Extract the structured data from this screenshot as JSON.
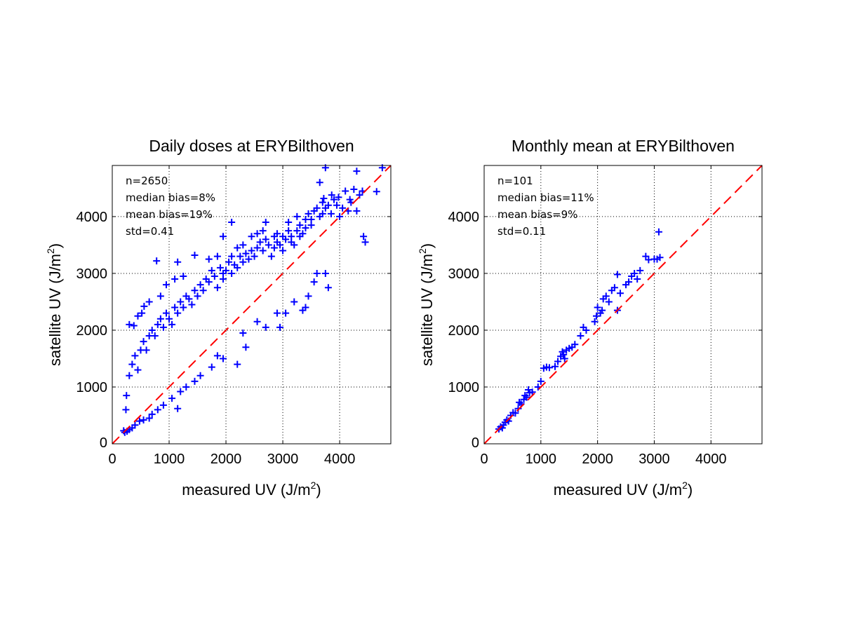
{
  "chart_data": [
    {
      "type": "scatter",
      "title": "Daily doses at ERYBilthoven",
      "xlabel": "measured UV (J/m",
      "ylabel": "satellite UV (J/m",
      "label_superscript": "2",
      "label_close": ")",
      "xlim": [
        0,
        4900
      ],
      "ylim": [
        0,
        4900
      ],
      "xticks": [
        "0",
        "1000",
        "2000",
        "3000",
        "4000"
      ],
      "yticks": [
        "0",
        "1000",
        "2000",
        "3000",
        "4000"
      ],
      "tick_values": [
        0,
        1000,
        2000,
        3000,
        4000
      ],
      "grid": true,
      "reference_line": [
        [
          0,
          0
        ],
        [
          4900,
          4900
        ]
      ],
      "annotations": [
        "n=2650",
        "median bias=8%",
        "mean bias=19%",
        "std=0.41"
      ],
      "marker": "+",
      "marker_color": "#0000ff",
      "line_color": "#ff0000",
      "points": [
        [
          4750,
          4860
        ],
        [
          4650,
          4440
        ],
        [
          4400,
          4450
        ],
        [
          4350,
          4380
        ],
        [
          4250,
          4480
        ],
        [
          4180,
          4300
        ],
        [
          4100,
          4450
        ],
        [
          4420,
          3650
        ],
        [
          4450,
          3550
        ],
        [
          4300,
          4100
        ],
        [
          3980,
          4340
        ],
        [
          3860,
          4380
        ],
        [
          3750,
          4860
        ],
        [
          3720,
          4320
        ],
        [
          3700,
          4050
        ],
        [
          3650,
          4600
        ],
        [
          4300,
          4800
        ],
        [
          3500,
          3950
        ],
        [
          3400,
          3800
        ],
        [
          3300,
          3650
        ],
        [
          3250,
          4000
        ],
        [
          3100,
          3900
        ],
        [
          3000,
          3650
        ],
        [
          2900,
          3550
        ],
        [
          2700,
          3900
        ],
        [
          2650,
          3750
        ],
        [
          2550,
          3700
        ],
        [
          2450,
          3650
        ],
        [
          2300,
          3500
        ],
        [
          2200,
          3450
        ],
        [
          2100,
          3300
        ],
        [
          1950,
          3000
        ],
        [
          1850,
          3300
        ],
        [
          1700,
          3250
        ],
        [
          1450,
          3320
        ],
        [
          1250,
          2950
        ],
        [
          1150,
          3200
        ],
        [
          1100,
          2900
        ],
        [
          950,
          2800
        ],
        [
          780,
          3220
        ],
        [
          850,
          2600
        ],
        [
          650,
          2500
        ],
        [
          560,
          2420
        ],
        [
          520,
          2300
        ],
        [
          450,
          2250
        ],
        [
          380,
          2080
        ],
        [
          300,
          2100
        ],
        [
          2100,
          3900
        ],
        [
          1950,
          3650
        ],
        [
          2850,
          3650
        ],
        [
          3150,
          3550
        ],
        [
          3400,
          2400
        ],
        [
          3350,
          2350
        ],
        [
          3800,
          2750
        ],
        [
          3750,
          3000
        ],
        [
          3600,
          3000
        ],
        [
          3550,
          2850
        ],
        [
          3450,
          2600
        ],
        [
          3200,
          2500
        ],
        [
          3050,
          2300
        ],
        [
          2900,
          2300
        ],
        [
          2950,
          2050
        ],
        [
          2700,
          2050
        ],
        [
          2550,
          2150
        ],
        [
          2350,
          1700
        ],
        [
          2300,
          1950
        ],
        [
          2200,
          1400
        ],
        [
          1950,
          1500
        ],
        [
          1850,
          1550
        ],
        [
          1750,
          1350
        ],
        [
          1550,
          1200
        ],
        [
          1450,
          1100
        ],
        [
          1300,
          1000
        ],
        [
          1200,
          920
        ],
        [
          1150,
          620
        ],
        [
          1050,
          800
        ],
        [
          900,
          680
        ],
        [
          800,
          600
        ],
        [
          700,
          520
        ],
        [
          650,
          450
        ],
        [
          550,
          420
        ],
        [
          480,
          400
        ],
        [
          400,
          330
        ],
        [
          350,
          280
        ],
        [
          300,
          250
        ],
        [
          260,
          220
        ],
        [
          220,
          200
        ],
        [
          200,
          230
        ],
        [
          240,
          600
        ],
        [
          250,
          850
        ],
        [
          300,
          1200
        ],
        [
          350,
          1400
        ],
        [
          400,
          1550
        ],
        [
          450,
          1300
        ],
        [
          500,
          1650
        ],
        [
          550,
          1800
        ],
        [
          600,
          1650
        ],
        [
          650,
          1900
        ],
        [
          700,
          2000
        ],
        [
          750,
          1900
        ],
        [
          800,
          2100
        ],
        [
          850,
          2200
        ],
        [
          900,
          2050
        ],
        [
          950,
          2300
        ],
        [
          1000,
          2200
        ],
        [
          1050,
          2100
        ],
        [
          1100,
          2400
        ],
        [
          1150,
          2300
        ],
        [
          1200,
          2500
        ],
        [
          1250,
          2400
        ],
        [
          1300,
          2600
        ],
        [
          1350,
          2550
        ],
        [
          1400,
          2450
        ],
        [
          1450,
          2700
        ],
        [
          1500,
          2600
        ],
        [
          1550,
          2800
        ],
        [
          1600,
          2700
        ],
        [
          1650,
          2900
        ],
        [
          1700,
          2850
        ],
        [
          1750,
          3050
        ],
        [
          1800,
          2950
        ],
        [
          1850,
          2750
        ],
        [
          1900,
          3100
        ],
        [
          1950,
          2900
        ],
        [
          2000,
          3050
        ],
        [
          2050,
          3200
        ],
        [
          2100,
          3000
        ],
        [
          2150,
          3150
        ],
        [
          2200,
          3100
        ],
        [
          2250,
          3300
        ],
        [
          2300,
          3200
        ],
        [
          2350,
          3350
        ],
        [
          2400,
          3250
        ],
        [
          2450,
          3400
        ],
        [
          2500,
          3300
        ],
        [
          2550,
          3450
        ],
        [
          2600,
          3550
        ],
        [
          2650,
          3400
        ],
        [
          2700,
          3600
        ],
        [
          2750,
          3500
        ],
        [
          2800,
          3300
        ],
        [
          2850,
          3450
        ],
        [
          2900,
          3700
        ],
        [
          2950,
          3500
        ],
        [
          3000,
          3400
        ],
        [
          3050,
          3600
        ],
        [
          3100,
          3750
        ],
        [
          3150,
          3650
        ],
        [
          3200,
          3500
        ],
        [
          3250,
          3750
        ],
        [
          3300,
          3850
        ],
        [
          3350,
          3700
        ],
        [
          3400,
          3950
        ],
        [
          3450,
          4050
        ],
        [
          3500,
          3850
        ],
        [
          3550,
          4100
        ],
        [
          3600,
          4150
        ],
        [
          3650,
          4000
        ],
        [
          3700,
          4250
        ],
        [
          3750,
          4150
        ],
        [
          3800,
          4200
        ],
        [
          3850,
          4050
        ],
        [
          3900,
          4300
        ],
        [
          3950,
          4200
        ],
        [
          4000,
          4000
        ],
        [
          4050,
          4150
        ],
        [
          4150,
          4100
        ],
        [
          4200,
          4250
        ]
      ]
    },
    {
      "type": "scatter",
      "title": "Monthly mean at ERYBilthoven",
      "xlabel": "measured UV (J/m",
      "ylabel": "satellite UV (J/m",
      "label_superscript": "2",
      "label_close": ")",
      "xlim": [
        0,
        4900
      ],
      "ylim": [
        0,
        4900
      ],
      "xticks": [
        "0",
        "1000",
        "2000",
        "3000",
        "4000"
      ],
      "yticks": [
        "0",
        "1000",
        "2000",
        "3000",
        "4000"
      ],
      "tick_values": [
        0,
        1000,
        2000,
        3000,
        4000
      ],
      "grid": true,
      "reference_line": [
        [
          0,
          0
        ],
        [
          4900,
          4900
        ]
      ],
      "annotations": [
        "n=101",
        "median bias=11%",
        "mean bias=9%",
        "std=0.11"
      ],
      "marker": "+",
      "marker_color": "#0000ff",
      "line_color": "#ff0000",
      "points": [
        [
          260,
          260
        ],
        [
          290,
          300
        ],
        [
          320,
          280
        ],
        [
          340,
          330
        ],
        [
          370,
          380
        ],
        [
          400,
          420
        ],
        [
          430,
          400
        ],
        [
          470,
          500
        ],
        [
          510,
          550
        ],
        [
          550,
          540
        ],
        [
          600,
          620
        ],
        [
          620,
          730
        ],
        [
          650,
          700
        ],
        [
          700,
          780
        ],
        [
          720,
          850
        ],
        [
          750,
          820
        ],
        [
          780,
          950
        ],
        [
          800,
          900
        ],
        [
          850,
          910
        ],
        [
          950,
          1000
        ],
        [
          1000,
          1100
        ],
        [
          1050,
          1330
        ],
        [
          1100,
          1350
        ],
        [
          1150,
          1340
        ],
        [
          1250,
          1360
        ],
        [
          1300,
          1450
        ],
        [
          1350,
          1540
        ],
        [
          1380,
          1620
        ],
        [
          1400,
          1570
        ],
        [
          1420,
          1500
        ],
        [
          1450,
          1650
        ],
        [
          1500,
          1680
        ],
        [
          1550,
          1700
        ],
        [
          1600,
          1750
        ],
        [
          1700,
          1900
        ],
        [
          1750,
          2050
        ],
        [
          1800,
          2000
        ],
        [
          1950,
          2150
        ],
        [
          1980,
          2250
        ],
        [
          2000,
          2400
        ],
        [
          2050,
          2300
        ],
        [
          2080,
          2350
        ],
        [
          2100,
          2550
        ],
        [
          2150,
          2600
        ],
        [
          2200,
          2500
        ],
        [
          2250,
          2700
        ],
        [
          2300,
          2750
        ],
        [
          2350,
          2350
        ],
        [
          2350,
          2980
        ],
        [
          2400,
          2650
        ],
        [
          2500,
          2800
        ],
        [
          2550,
          2850
        ],
        [
          2600,
          2950
        ],
        [
          2650,
          3000
        ],
        [
          2700,
          2900
        ],
        [
          2750,
          3050
        ],
        [
          2850,
          3300
        ],
        [
          2900,
          3240
        ],
        [
          3000,
          3250
        ],
        [
          3050,
          3250
        ],
        [
          3100,
          3280
        ],
        [
          3080,
          3730
        ]
      ]
    }
  ]
}
